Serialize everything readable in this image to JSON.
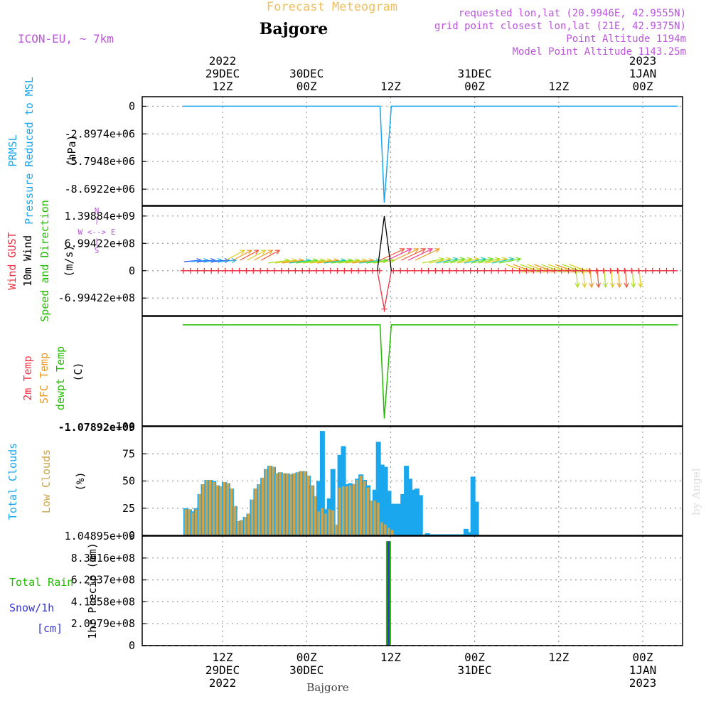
{
  "header": {
    "forecast_title": "Forecast Meteogram",
    "location": "Bajgore",
    "model": "ICON-EU, ~ 7km",
    "requested": "requested lon,lat (20.9946E, 42.9555N)",
    "grid_point": "grid point closest lon,lat (21E, 42.9375N)",
    "point_altitude": "Point Altitude 1194m",
    "model_altitude": "Model Point Altitude 1143.25m",
    "credit": "by Angel",
    "footer_location": "Bajgore"
  },
  "colors": {
    "pressure": "#1aa7ee",
    "gust": "#ee3344",
    "wind": "#000000",
    "dewpoint": "#22bb00",
    "sfc_temp": "#ee9922",
    "total_clouds": "#1aa7ee",
    "low_clouds": "#cfa448",
    "rain": "#22bb00",
    "snow": "#3333dd",
    "header_purple": "#bb55dd",
    "title_orange": "#f0c060",
    "grid": "#999999"
  },
  "time_axis": {
    "top_labels": [
      {
        "hour": 0,
        "lines": [
          "2022",
          "29DEC",
          "12Z"
        ]
      },
      {
        "hour": 12,
        "lines": [
          "30DEC",
          "00Z"
        ]
      },
      {
        "hour": 24,
        "lines": [
          "12Z"
        ]
      },
      {
        "hour": 36,
        "lines": [
          "31DEC",
          "00Z"
        ]
      },
      {
        "hour": 48,
        "lines": [
          "12Z"
        ]
      },
      {
        "hour": 60,
        "lines": [
          "2023",
          "1JAN",
          "00Z"
        ]
      }
    ],
    "bottom_labels": [
      {
        "hour": 0,
        "lines": [
          "12Z",
          "29DEC",
          "2022"
        ]
      },
      {
        "hour": 12,
        "lines": [
          "00Z",
          "30DEC"
        ]
      },
      {
        "hour": 24,
        "lines": [
          "12Z"
        ]
      },
      {
        "hour": 36,
        "lines": [
          "00Z",
          "31DEC"
        ]
      },
      {
        "hour": 48,
        "lines": [
          "12Z"
        ]
      },
      {
        "hour": 60,
        "lines": [
          "00Z",
          "1JAN",
          "2023"
        ]
      }
    ]
  },
  "chart_data": [
    {
      "type": "line",
      "title": "PRMSL Pressure Reduced to MSL",
      "label_lines": [
        "PRMSL",
        "Pressure Reduced to MSL"
      ],
      "ylabel": "(hPa)",
      "y_ticks": [
        "0",
        "-2.8974e+06",
        "-5.7948e+06",
        "-8.6922e+06"
      ],
      "y_tick_values": [
        0,
        -2897400,
        -5794800,
        -8692200
      ],
      "ylim": [
        -10400000,
        1000000
      ],
      "x": [
        -5.7,
        21.6,
        22.5,
        23.1,
        24.1,
        37.8,
        58.1,
        65.0
      ],
      "values": [
        0,
        0,
        0,
        -10100000,
        0,
        0,
        0,
        0
      ]
    },
    {
      "type": "line",
      "title": "Wind GUST / 10m Wind Speed and Direction",
      "label_lines": [
        "Wind GUST",
        "10m Wind",
        "Speed and Direction"
      ],
      "ylabel": "(m/s)",
      "compass": [
        "N",
        "|",
        "W <--> E",
        "|",
        "S"
      ],
      "y_ticks": [
        "1.39884e+09",
        "6.99422e+08",
        "0",
        "-6.99422e+08"
      ],
      "y_tick_values": [
        1398840000,
        699422000,
        0,
        -699422000
      ],
      "ylim": [
        -1150000000,
        1650000000
      ],
      "series": [
        {
          "name": "10m Wind",
          "x": [
            22.1,
            23.1,
            24.1
          ],
          "values": [
            0,
            1398840000,
            0
          ]
        },
        {
          "name": "Wind GUST",
          "x": [
            -5.7,
            22.1,
            23.1,
            24.1,
            65.0
          ],
          "values": [
            0,
            0,
            -980000000,
            0,
            0
          ]
        }
      ]
    },
    {
      "type": "line",
      "title": "2m Temp / SFC Temp / dewpt Temp",
      "label_lines": [
        "2m Temp",
        "SFC Temp",
        "dewpt Temp"
      ],
      "ylabel": "(C)",
      "y_ticks": [
        "-1.07892e+09"
      ],
      "y_tick_values": [
        -1078920000
      ],
      "ylim": [
        -1078920000,
        90000000
      ],
      "x": [
        -5.7,
        21.6,
        22.5,
        23.1,
        24.1,
        65.0
      ],
      "values": [
        0,
        0,
        0,
        -1000000000,
        0,
        0
      ]
    },
    {
      "type": "bar",
      "title": "Total Clouds / Low Clouds",
      "label_lines": [
        "Total Clouds",
        "Low Clouds"
      ],
      "ylabel": "(%)",
      "y_ticks": [
        "100",
        "75",
        "50",
        "25",
        "0"
      ],
      "y_tick_values": [
        100,
        75,
        50,
        25,
        0
      ],
      "ylim": [
        0,
        100
      ],
      "x_start": -5.7,
      "x_step": 0.5,
      "series": [
        {
          "name": "Total Clouds",
          "values": [
            25,
            24,
            22,
            25,
            38,
            47,
            51,
            51,
            50,
            46,
            45,
            49,
            48,
            43,
            27,
            13,
            14,
            17,
            20,
            33,
            43,
            47,
            53,
            61,
            64,
            63,
            57,
            58,
            57,
            57,
            56,
            57,
            58,
            59,
            59,
            55,
            46,
            36,
            50,
            96,
            24,
            34,
            61,
            2,
            74,
            82,
            47,
            48,
            47,
            52,
            56,
            51,
            46,
            32,
            42,
            86,
            65,
            63,
            41,
            29,
            29,
            29,
            38,
            64,
            52,
            42,
            43,
            37,
            1,
            2,
            1,
            1,
            1,
            1,
            1,
            1,
            1,
            1,
            1,
            1,
            6,
            3,
            54,
            31
          ]
        },
        {
          "name": "Low Clouds",
          "values": [
            24,
            24,
            21,
            24,
            38,
            47,
            51,
            51,
            49,
            46,
            45,
            49,
            48,
            43,
            27,
            13,
            14,
            17,
            20,
            33,
            43,
            47,
            53,
            61,
            64,
            63,
            57,
            58,
            57,
            57,
            56,
            57,
            58,
            59,
            59,
            55,
            46,
            36,
            22,
            25,
            20,
            24,
            23,
            10,
            44,
            45,
            45,
            46,
            47,
            51,
            55,
            50,
            44,
            32,
            32,
            30,
            12,
            10,
            7,
            5,
            0,
            0,
            0,
            0,
            0,
            0,
            0,
            0,
            1,
            0,
            0,
            0,
            0,
            0,
            0,
            0,
            0,
            0,
            0,
            0,
            0,
            0,
            0,
            0
          ]
        }
      ]
    },
    {
      "type": "bar",
      "title": "Total Rain / Snow/1h",
      "label_lines": [
        "Total Rain",
        "Snow/1h",
        "[cm]"
      ],
      "ylabel": "1hr Precip (mm)",
      "y_ticks": [
        "1.04895e+09",
        "8.3916e+08",
        "6.2937e+08",
        "4.1958e+08",
        "2.0979e+08",
        "0"
      ],
      "y_tick_values": [
        1048950000,
        839160000,
        629370000,
        419580000,
        209790000,
        0
      ],
      "ylim": [
        0,
        1048950000
      ],
      "series": [
        {
          "name": "Total Rain",
          "x": [
            23.7
          ],
          "values": [
            1000000000
          ]
        },
        {
          "name": "Snow/1h",
          "x": [
            23.7
          ],
          "values": [
            1000000000
          ]
        }
      ]
    }
  ]
}
